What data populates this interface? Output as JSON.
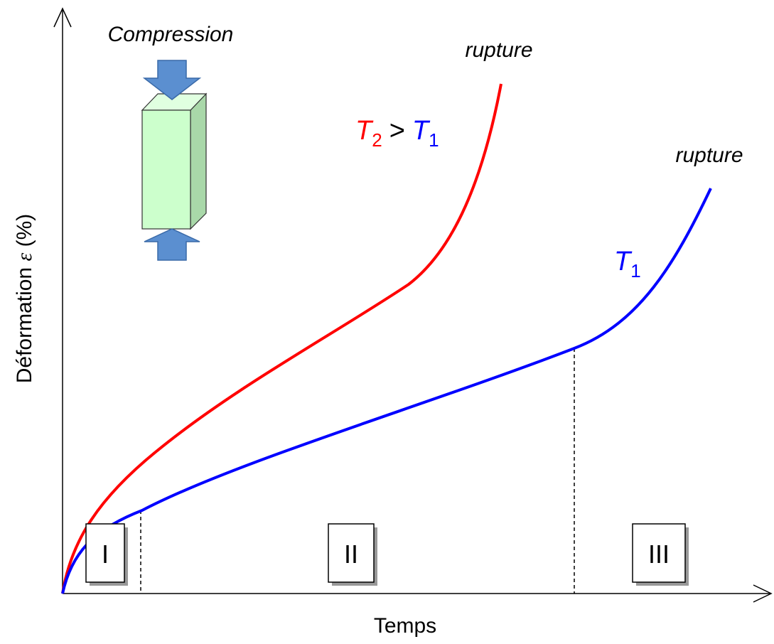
{
  "axes": {
    "x_label": "Temps",
    "y_label": {
      "word": "Déformation",
      "symbol": "ε",
      "unit": "(%)"
    }
  },
  "specimen": {
    "label": "Compression"
  },
  "curves": [
    {
      "label": {
        "symbol": "T",
        "subscript": "2"
      },
      "end_label": "rupture"
    },
    {
      "label": {
        "symbol": "T",
        "subscript": "1"
      },
      "end_label": "rupture"
    }
  ],
  "comparison": {
    "operator": ">"
  },
  "stages": [
    "I",
    "II",
    "III"
  ]
}
